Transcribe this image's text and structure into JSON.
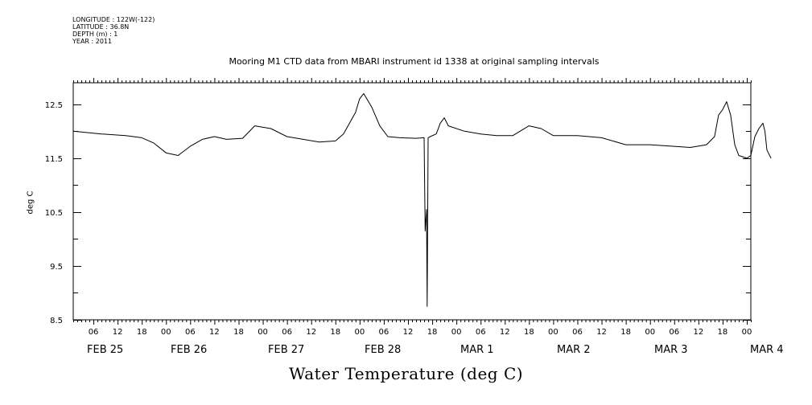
{
  "header": {
    "lines": [
      "LONGITUDE : 122W(-122)",
      "LATITUDE : 36.8N",
      "DEPTH (m) : 1",
      "YEAR : 2011"
    ]
  },
  "chart_data": {
    "type": "line",
    "title": "Mooring M1 CTD data from MBARI instrument id 1338 at original sampling intervals",
    "ylabel": "deg C",
    "xlabel": "Water Temperature (deg C)",
    "ylim": [
      8.5,
      12.9
    ],
    "yticks": [
      8.5,
      9.5,
      10.5,
      11.5,
      12.5
    ],
    "ytick_labels": [
      "8.5",
      "9.5",
      "10.5",
      "11.5",
      "12.5"
    ],
    "x_hour_labels": [
      "06",
      "12",
      "18",
      "00",
      "06",
      "12",
      "18",
      "00",
      "06",
      "12",
      "18",
      "00",
      "06",
      "12",
      "18",
      "00",
      "06",
      "12",
      "18",
      "00",
      "06",
      "12",
      "18",
      "00",
      "06",
      "12",
      "18",
      "00"
    ],
    "x_day_labels": [
      "FEB 25",
      "FEB 26",
      "FEB 27",
      "FEB 28",
      "MAR  1",
      "MAR  2",
      "MAR  3",
      "MAR  4"
    ],
    "x_range_hours_from_feb25_0000": [
      1,
      169
    ],
    "series": [
      {
        "x": [
          "2011-02-25 01:00",
          "2011-02-25 08:00",
          "2011-02-25 14:00",
          "2011-02-25 18:00",
          "2011-02-25 21:00",
          "2011-02-26 00:00",
          "2011-02-26 03:00",
          "2011-02-26 06:00",
          "2011-02-26 09:00",
          "2011-02-26 12:00",
          "2011-02-26 15:00",
          "2011-02-26 19:00",
          "2011-02-26 22:00",
          "2011-02-27 02:00",
          "2011-02-27 06:00",
          "2011-02-27 10:00",
          "2011-02-27 14:00",
          "2011-02-27 18:00",
          "2011-02-27 20:00",
          "2011-02-27 23:00",
          "2011-02-28 00:00",
          "2011-02-28 01:00",
          "2011-02-28 03:00",
          "2011-02-28 05:00",
          "2011-02-28 07:00",
          "2011-02-28 10:00",
          "2011-02-28 14:00",
          "2011-02-28 16:00",
          "2011-02-28 16:15",
          "2011-02-28 16:35",
          "2011-02-28 16:45",
          "2011-02-28 17:00",
          "2011-02-28 17:30",
          "2011-02-28 19:00",
          "2011-02-28 20:00",
          "2011-02-28 21:00",
          "2011-02-28 22:00",
          "2011-03-01 02:00",
          "2011-03-01 06:00",
          "2011-03-01 10:00",
          "2011-03-01 14:00",
          "2011-03-01 18:00",
          "2011-03-01 21:00",
          "2011-03-02 00:00",
          "2011-03-02 06:00",
          "2011-03-02 12:00",
          "2011-03-02 18:00",
          "2011-03-03 00:00",
          "2011-03-03 06:00",
          "2011-03-03 10:00",
          "2011-03-03 14:00",
          "2011-03-03 16:00",
          "2011-03-03 17:00",
          "2011-03-03 18:00",
          "2011-03-03 19:00",
          "2011-03-03 20:00",
          "2011-03-03 21:00",
          "2011-03-03 22:00",
          "2011-03-04 00:00",
          "2011-03-04 01:00",
          "2011-03-04 02:00",
          "2011-03-04 03:00",
          "2011-03-04 04:00",
          "2011-03-04 04:30",
          "2011-03-04 05:00",
          "2011-03-04 06:00"
        ],
        "values": [
          12.0,
          11.95,
          11.92,
          11.88,
          11.78,
          11.6,
          11.55,
          11.72,
          11.85,
          11.9,
          11.85,
          11.87,
          12.1,
          12.05,
          11.9,
          11.85,
          11.8,
          11.82,
          11.95,
          12.35,
          12.6,
          12.7,
          12.45,
          12.1,
          11.9,
          11.88,
          11.87,
          11.88,
          10.15,
          10.55,
          8.75,
          11.88,
          11.9,
          11.95,
          12.15,
          12.25,
          12.1,
          12.0,
          11.95,
          11.92,
          11.92,
          12.1,
          12.05,
          11.92,
          11.92,
          11.88,
          11.75,
          11.75,
          11.72,
          11.7,
          11.75,
          11.9,
          12.3,
          12.4,
          12.55,
          12.3,
          11.75,
          11.55,
          11.5,
          11.55,
          11.9,
          12.05,
          12.15,
          12.0,
          11.65,
          11.5
        ]
      }
    ],
    "grid": false
  },
  "colors": {
    "axis": "#000000",
    "line": "#000000",
    "background": "#ffffff"
  }
}
